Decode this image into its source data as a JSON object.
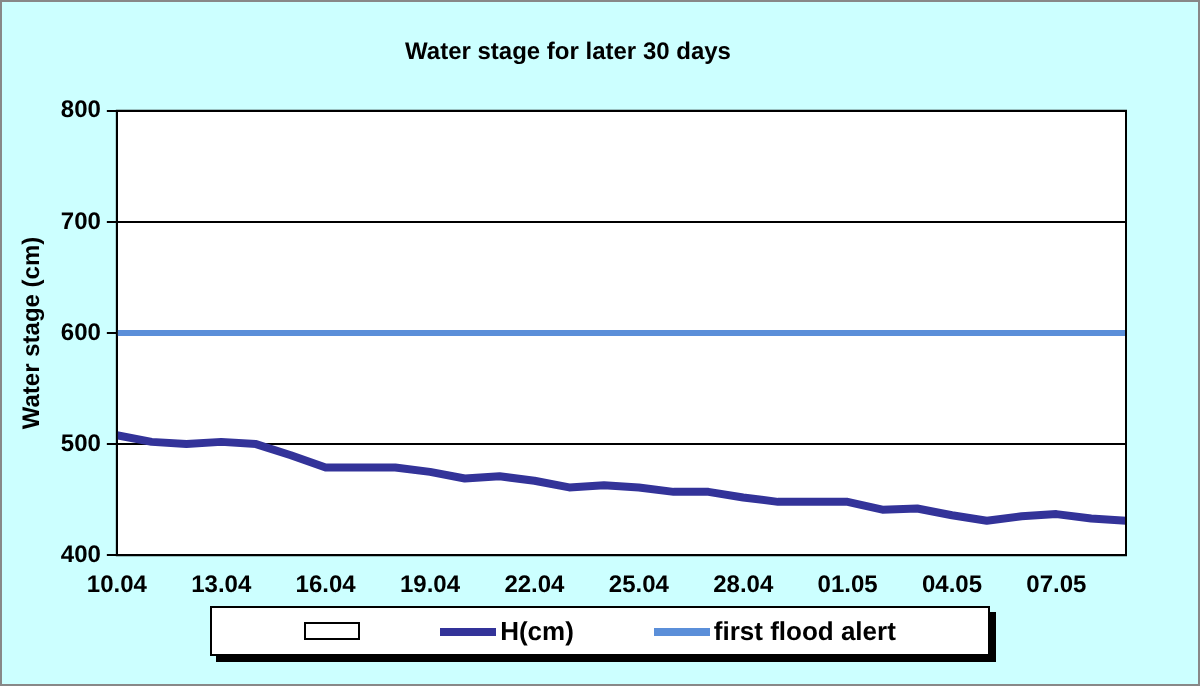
{
  "chart_data": {
    "type": "line",
    "title": "Water stage for later 30 days",
    "ylabel": "Water stage (cm)",
    "categories": [
      "10.04",
      null,
      null,
      "13.04",
      null,
      null,
      "16.04",
      null,
      null,
      "19.04",
      null,
      null,
      "22.04",
      null,
      null,
      "25.04",
      null,
      null,
      "28.04",
      null,
      null,
      "01.05",
      null,
      null,
      "04.05",
      null,
      null,
      "07.05",
      null,
      null
    ],
    "series": [
      {
        "name": "H(cm)",
        "color": "#333399",
        "values": [
          508,
          502,
          500,
          502,
          500,
          490,
          479,
          479,
          479,
          475,
          469,
          471,
          467,
          461,
          463,
          461,
          457,
          457,
          452,
          448,
          448,
          448,
          441,
          442,
          436,
          431,
          435,
          437,
          433,
          431
        ]
      }
    ],
    "ylim": [
      400,
      800
    ],
    "yticks": [
      400,
      500,
      600,
      700,
      800
    ],
    "grid": "y",
    "legend": "bottom",
    "marker": "none",
    "line_style": "solid",
    "ref_lines": [
      {
        "axis": "y",
        "value": 600,
        "label": "first flood alert",
        "color": "#5b8fd9"
      }
    ]
  }
}
